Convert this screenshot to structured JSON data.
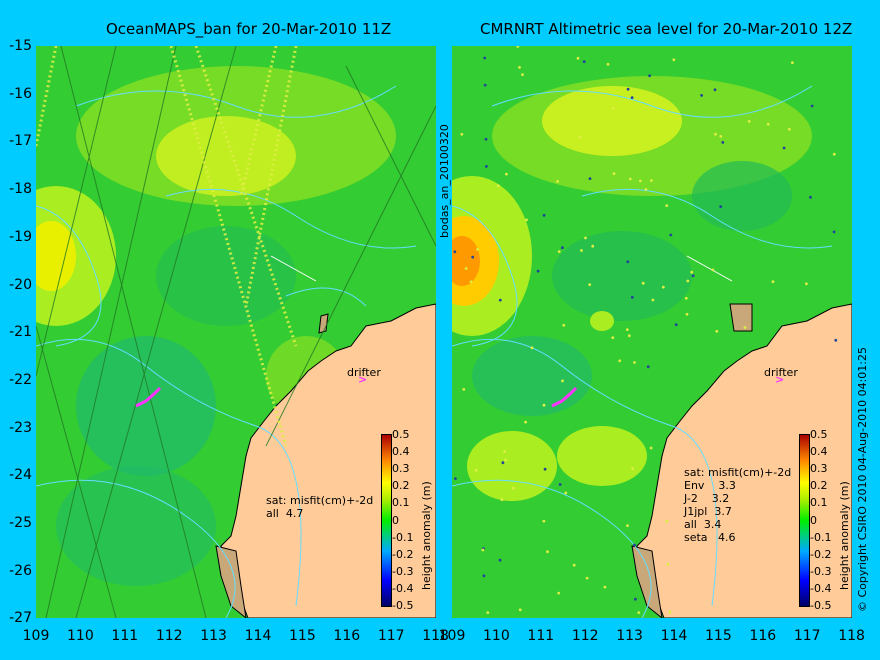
{
  "left_panel": {
    "title": "OceanMAPS_ban for 20-Mar-2010 11Z",
    "info_lines": [
      "sat: misfit(cm)+-2d",
      "all  4.7"
    ]
  },
  "right_panel": {
    "title": "CMRNRT Altimetric sea level  for 20-Mar-2010 12Z",
    "info_lines": [
      "sat: misfit(cm)+-2d",
      "Env    3.3",
      "J-2    3.2",
      "J1jpl  3.7",
      "all  3.4",
      "seta   4.6"
    ]
  },
  "y_ticks": [
    "-15",
    "-16",
    "-17",
    "-18",
    "-19",
    "-20",
    "-21",
    "-22",
    "-23",
    "-24",
    "-25",
    "-26",
    "-27"
  ],
  "x_ticks": [
    "109",
    "110",
    "111",
    "112",
    "113",
    "114",
    "115",
    "116",
    "117",
    "118"
  ],
  "drifter_label": "drifter",
  "drifter_marker": ">",
  "colorbar": {
    "ticks": [
      "0.5",
      "0.4",
      "0.3",
      "0.2",
      "0.1",
      "0",
      "-0.1",
      "-0.2",
      "-0.3",
      "-0.4",
      "-0.5"
    ],
    "title": "height anomaly (m)"
  },
  "side_label": "bodas_an_20100320",
  "copyright": "© Copyright CSIRO 2010   04-Aug-2010 04:01:25",
  "colors": {
    "background": "#00ccff",
    "ocean": "#33cc33",
    "land": "#ffcc99",
    "contour": "#66ddff",
    "drifter": "#ff33ff"
  }
}
